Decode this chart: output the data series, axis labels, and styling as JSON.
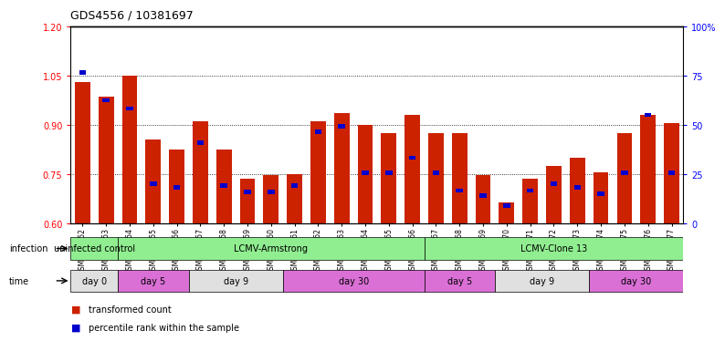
{
  "title": "GDS4556 / 10381697",
  "samples": [
    "GSM1083152",
    "GSM1083153",
    "GSM1083154",
    "GSM1083155",
    "GSM1083156",
    "GSM1083157",
    "GSM1083158",
    "GSM1083159",
    "GSM1083160",
    "GSM1083161",
    "GSM1083162",
    "GSM1083163",
    "GSM1083164",
    "GSM1083165",
    "GSM1083166",
    "GSM1083167",
    "GSM1083168",
    "GSM1083169",
    "GSM1083170",
    "GSM1083171",
    "GSM1083172",
    "GSM1083173",
    "GSM1083174",
    "GSM1083175",
    "GSM1083176",
    "GSM1083177"
  ],
  "red_values": [
    1.03,
    0.985,
    1.05,
    0.855,
    0.825,
    0.91,
    0.825,
    0.735,
    0.748,
    0.75,
    0.91,
    0.935,
    0.9,
    0.875,
    0.93,
    0.875,
    0.875,
    0.748,
    0.665,
    0.735,
    0.775,
    0.8,
    0.755,
    0.875,
    0.93,
    0.905
  ],
  "blue_values": [
    1.06,
    0.975,
    0.95,
    0.72,
    0.71,
    0.845,
    0.715,
    0.695,
    0.695,
    0.715,
    0.88,
    0.895,
    0.755,
    0.755,
    0.8,
    0.755,
    0.7,
    0.685,
    0.655,
    0.7,
    0.72,
    0.71,
    0.69,
    0.755,
    0.93,
    0.755
  ],
  "ylim_left": [
    0.6,
    1.2
  ],
  "ylim_right": [
    0,
    100
  ],
  "yticks_left": [
    0.6,
    0.75,
    0.9,
    1.05,
    1.2
  ],
  "yticks_right": [
    0,
    25,
    50,
    75,
    100
  ],
  "ytick_labels_right": [
    "0",
    "25",
    "50",
    "75",
    "100%"
  ],
  "infection_groups": [
    {
      "label": "uninfected control",
      "start": 0,
      "end": 2,
      "color": "#90EE90"
    },
    {
      "label": "LCMV-Armstrong",
      "start": 2,
      "end": 15,
      "color": "#90EE90"
    },
    {
      "label": "LCMV-Clone 13",
      "start": 15,
      "end": 26,
      "color": "#90EE90"
    }
  ],
  "time_groups": [
    {
      "label": "day 0",
      "start": 0,
      "end": 2,
      "color": "#E0E0E0"
    },
    {
      "label": "day 5",
      "start": 2,
      "end": 5,
      "color": "#DA70D6"
    },
    {
      "label": "day 9",
      "start": 5,
      "end": 9,
      "color": "#E0E0E0"
    },
    {
      "label": "day 30",
      "start": 9,
      "end": 15,
      "color": "#DA70D6"
    },
    {
      "label": "day 5",
      "start": 15,
      "end": 18,
      "color": "#DA70D6"
    },
    {
      "label": "day 9",
      "start": 18,
      "end": 22,
      "color": "#E0E0E0"
    },
    {
      "label": "day 30",
      "start": 22,
      "end": 26,
      "color": "#DA70D6"
    }
  ],
  "bar_color": "#CC2200",
  "marker_color": "#0000CC",
  "background_color": "#FFFFFF"
}
